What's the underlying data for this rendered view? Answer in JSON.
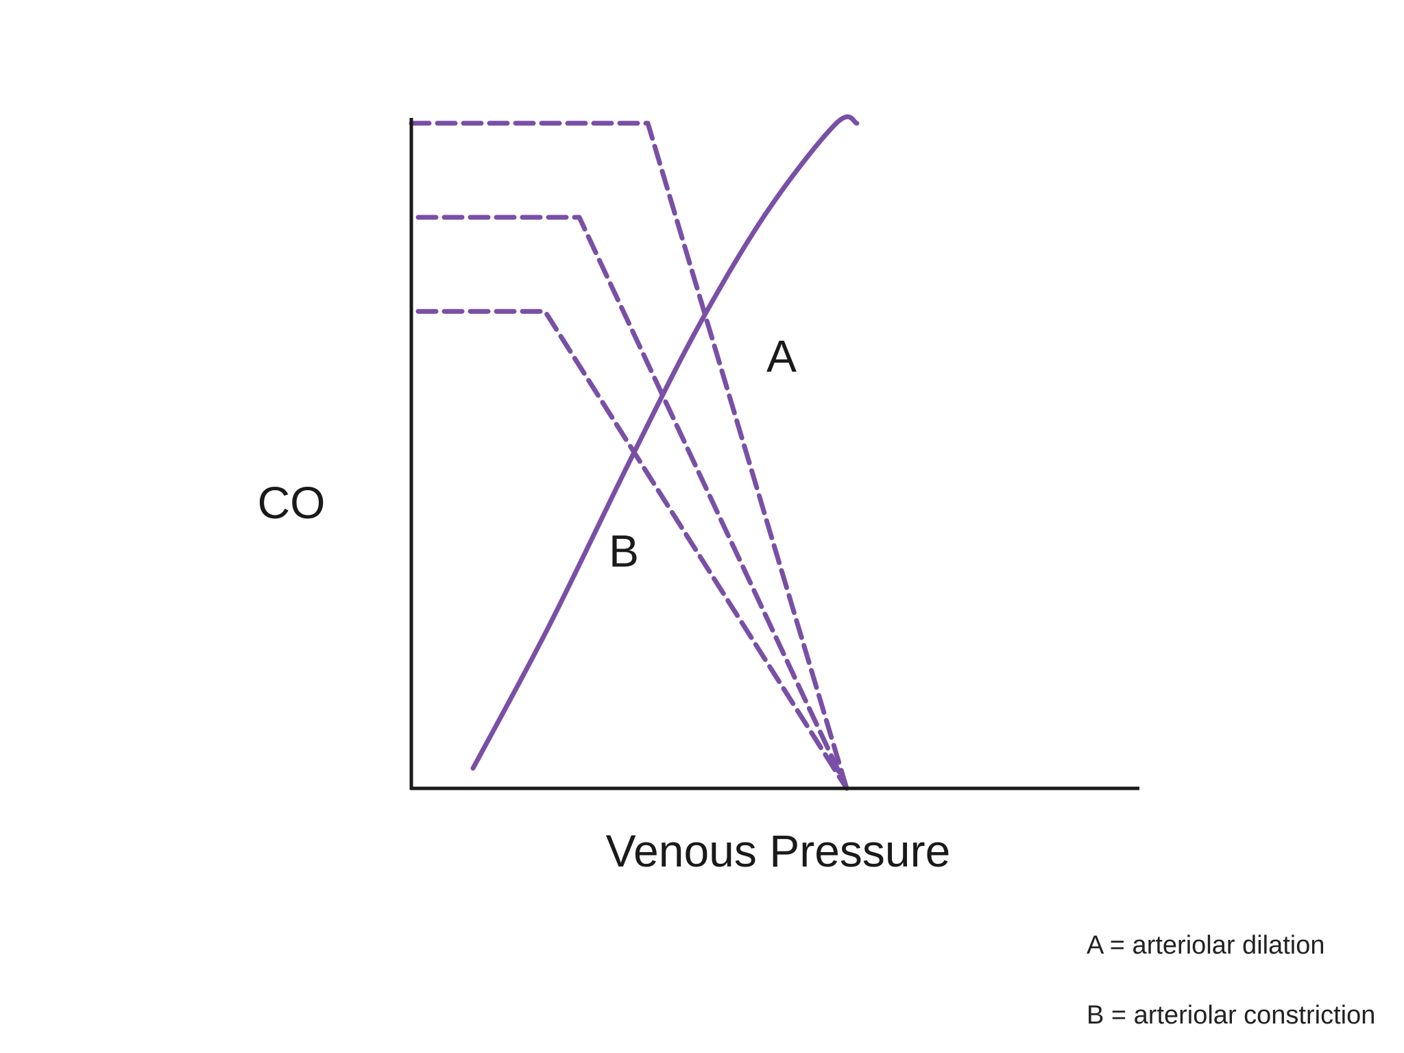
{
  "chart_data": {
    "type": "line",
    "title": "",
    "xlabel": "Venous Pressure",
    "ylabel": "CO",
    "xlim": [
      0,
      10
    ],
    "ylim": [
      0,
      10
    ],
    "grid": false,
    "accent_color": "#7a4fa6",
    "series": [
      {
        "style": "solid",
        "x": [
          0.9,
          2.0,
          3.2,
          4.2,
          5.2,
          6.2,
          6.5
        ],
        "y": [
          0.3,
          2.4,
          4.9,
          6.9,
          8.6,
          9.9,
          9.9
        ]
      },
      {
        "style": "dashed",
        "x": [
          0.0,
          3.45,
          6.35
        ],
        "y": [
          9.9,
          9.9,
          0.0
        ]
      },
      {
        "style": "dashed",
        "x": [
          0.1,
          2.45,
          6.35
        ],
        "y": [
          8.5,
          8.5,
          0.0
        ]
      },
      {
        "style": "dashed",
        "x": [
          0.1,
          1.95,
          6.35
        ],
        "y": [
          7.1,
          7.1,
          0.0
        ]
      }
    ],
    "annotations": [
      {
        "text": "A",
        "x": 5.4,
        "y": 6.2
      },
      {
        "text": "B",
        "x": 3.1,
        "y": 3.3
      }
    ]
  },
  "legend": {
    "line_a": "A = arteriolar dilation",
    "line_b": "B = arteriolar constriction"
  }
}
